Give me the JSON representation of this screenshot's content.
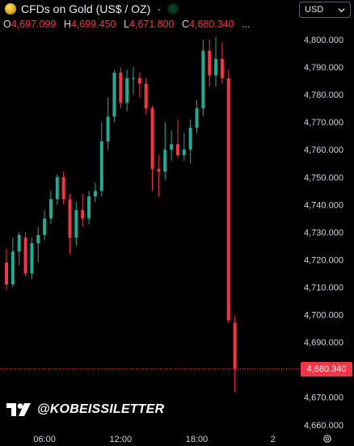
{
  "header": {
    "symbol_title": "CFDs on Gold (US$ / OZ)",
    "separator": "·",
    "icon": "gold-coin-icon",
    "status_icon": "market-open-dot-icon"
  },
  "ohlc": {
    "o_label": "O",
    "o_value": "4,697.099",
    "h_label": "H",
    "h_value": "4,699.450",
    "l_label": "L",
    "l_value": "4,671.800",
    "c_label": "C",
    "c_value": "4,680.340",
    "more": "..."
  },
  "currency_selector": {
    "label": "USD",
    "icon": "chevron-down-icon"
  },
  "watermark": {
    "handle": "@KOBEISSILETTER",
    "logo": "tradingview-logo"
  },
  "last_price_label": "4,680.340",
  "colors": {
    "up": "#22ab94",
    "down": "#f23645",
    "background": "#000000",
    "text": "#d1d4dc"
  },
  "chart_data": {
    "type": "candlestick",
    "title": "CFDs on Gold (US$ / OZ)",
    "currency": "USD",
    "y_ticks": [
      4660,
      4670,
      4680,
      4690,
      4700,
      4710,
      4720,
      4730,
      4740,
      4750,
      4760,
      4770,
      4780,
      4790,
      4800
    ],
    "y_tick_labels": [
      "4,660.000",
      "4,670.000",
      "4,680.000",
      "4,690.000",
      "4,700.000",
      "4,710.000",
      "4,720.000",
      "4,730.000",
      "4,740.000",
      "4,750.000",
      "4,760.000",
      "4,770.000",
      "4,780.000",
      "4,790.000",
      "4,800.000"
    ],
    "ylim": [
      4657.0,
      4805.0
    ],
    "x_tick_labels": [
      {
        "label": "06:00",
        "bar": 6
      },
      {
        "label": "12:00",
        "bar": 18
      },
      {
        "label": "18:00",
        "bar": 30
      },
      {
        "label": "2",
        "bar": 42
      }
    ],
    "last_price": 4680.34,
    "grid": false,
    "candles": [
      {
        "o": 4719,
        "h": 4724,
        "l": 4709,
        "c": 4711
      },
      {
        "o": 4711,
        "h": 4728,
        "l": 4710,
        "c": 4723
      },
      {
        "o": 4723,
        "h": 4730,
        "l": 4718,
        "c": 4729
      },
      {
        "o": 4728,
        "h": 4730,
        "l": 4714,
        "c": 4715
      },
      {
        "o": 4715,
        "h": 4728,
        "l": 4713,
        "c": 4726
      },
      {
        "o": 4726,
        "h": 4732,
        "l": 4719,
        "c": 4729
      },
      {
        "o": 4729,
        "h": 4738,
        "l": 4727,
        "c": 4735
      },
      {
        "o": 4735,
        "h": 4745,
        "l": 4733,
        "c": 4742
      },
      {
        "o": 4742,
        "h": 4751,
        "l": 4740,
        "c": 4750
      },
      {
        "o": 4750,
        "h": 4752,
        "l": 4740,
        "c": 4742
      },
      {
        "o": 4742,
        "h": 4744,
        "l": 4722,
        "c": 4728
      },
      {
        "o": 4728,
        "h": 4741,
        "l": 4725,
        "c": 4738
      },
      {
        "o": 4738,
        "h": 4744,
        "l": 4732,
        "c": 4735
      },
      {
        "o": 4735,
        "h": 4745,
        "l": 4733,
        "c": 4743
      },
      {
        "o": 4743,
        "h": 4748,
        "l": 4741,
        "c": 4745
      },
      {
        "o": 4745,
        "h": 4770,
        "l": 4743,
        "c": 4763
      },
      {
        "o": 4763,
        "h": 4779,
        "l": 4760,
        "c": 4772
      },
      {
        "o": 4772,
        "h": 4789,
        "l": 4770,
        "c": 4788
      },
      {
        "o": 4788,
        "h": 4790,
        "l": 4775,
        "c": 4777
      },
      {
        "o": 4777,
        "h": 4789,
        "l": 4774,
        "c": 4786
      },
      {
        "o": 4786,
        "h": 4790,
        "l": 4780,
        "c": 4786
      },
      {
        "o": 4786,
        "h": 4788,
        "l": 4779,
        "c": 4784
      },
      {
        "o": 4784,
        "h": 4786,
        "l": 4773,
        "c": 4775
      },
      {
        "o": 4775,
        "h": 4776,
        "l": 4745,
        "c": 4753
      },
      {
        "o": 4753,
        "h": 4758,
        "l": 4743,
        "c": 4752
      },
      {
        "o": 4752,
        "h": 4770,
        "l": 4749,
        "c": 4760
      },
      {
        "o": 4760,
        "h": 4767,
        "l": 4756,
        "c": 4762
      },
      {
        "o": 4762,
        "h": 4771,
        "l": 4757,
        "c": 4758
      },
      {
        "o": 4758,
        "h": 4766,
        "l": 4756,
        "c": 4760
      },
      {
        "o": 4760,
        "h": 4771,
        "l": 4755,
        "c": 4768
      },
      {
        "o": 4768,
        "h": 4778,
        "l": 4766,
        "c": 4775
      },
      {
        "o": 4775,
        "h": 4800,
        "l": 4772,
        "c": 4796
      },
      {
        "o": 4796,
        "h": 4800,
        "l": 4783,
        "c": 4787
      },
      {
        "o": 4787,
        "h": 4801,
        "l": 4783,
        "c": 4793
      },
      {
        "o": 4793,
        "h": 4799,
        "l": 4784,
        "c": 4786
      },
      {
        "o": 4786,
        "h": 4789,
        "l": 4697,
        "c": 4698
      },
      {
        "o": 4697.099,
        "h": 4699.45,
        "l": 4671.8,
        "c": 4680.34
      }
    ]
  }
}
